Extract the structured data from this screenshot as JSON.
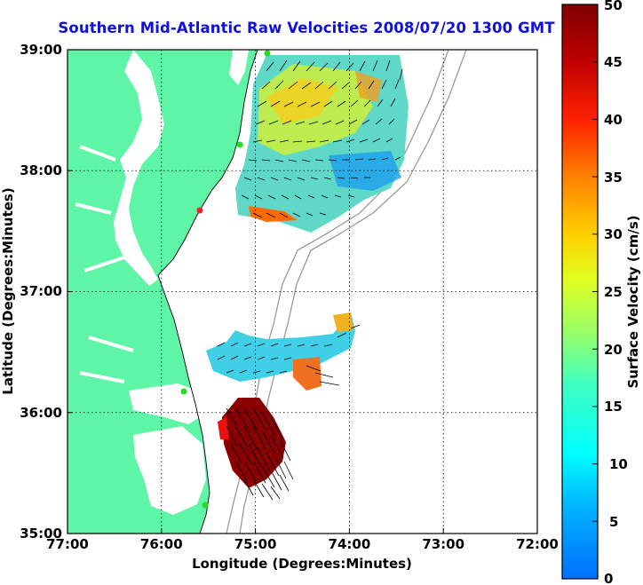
{
  "title": "Southern Mid-Atlantic Raw Velocities 2008/07/20 1300 GMT",
  "x_axis": {
    "label": "Longitude (Degrees:Minutes)",
    "ticks": [
      "77:00",
      "76:00",
      "75:00",
      "74:00",
      "73:00",
      "72:00"
    ]
  },
  "y_axis": {
    "label": "Latitude (Degrees:Minutes)",
    "ticks": [
      "39:00",
      "38:00",
      "37:00",
      "36:00",
      "35:00"
    ]
  },
  "colorbar": {
    "label": "Surface Velocity (cm/s)",
    "ticks": [
      "50",
      "45",
      "40",
      "35",
      "30",
      "25",
      "20",
      "15",
      "10",
      "5",
      "0"
    ],
    "min": 0,
    "max": 50
  },
  "map": {
    "lon_range": [
      -77,
      -72
    ],
    "lat_range": [
      35,
      39
    ],
    "land_color": "#5ef5a6",
    "grid": true,
    "grid_style": "dotted",
    "bathymetry_color": "#9a9a9a",
    "station_colors": {
      "active": "#22dd22",
      "inactive": "#ee2222"
    }
  }
}
